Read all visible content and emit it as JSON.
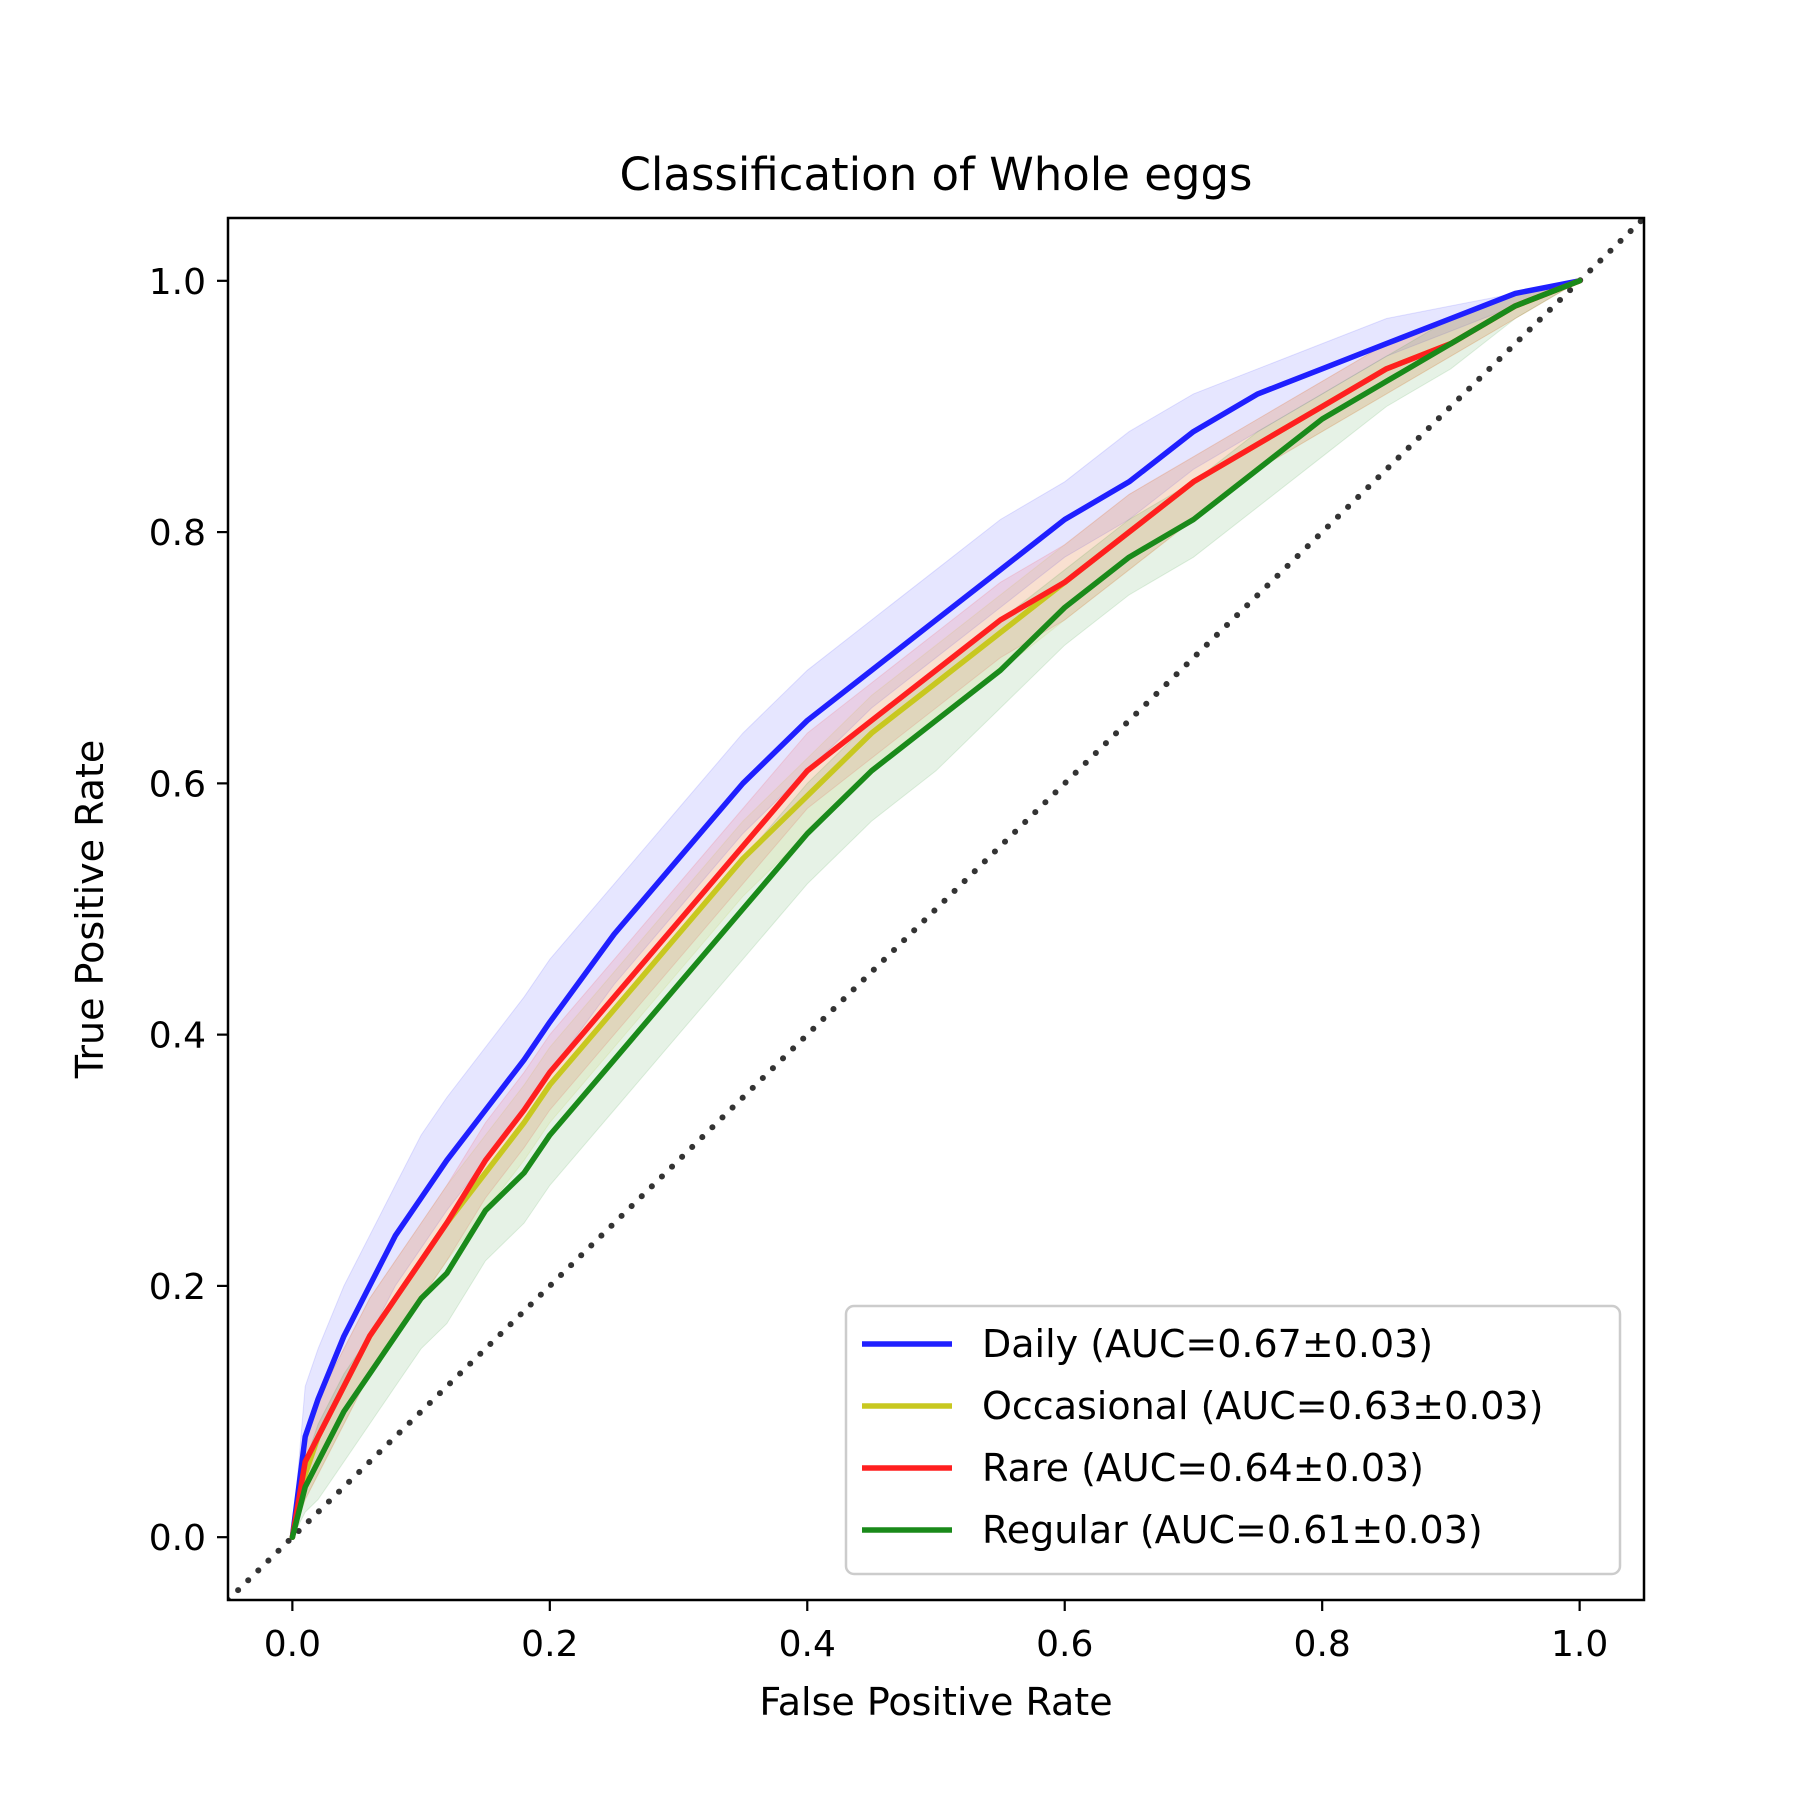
{
  "chart_data": {
    "type": "line",
    "title": "Classification of Whole eggs",
    "xlabel": "False Positive Rate",
    "ylabel": "True Positive Rate",
    "xlim": [
      -0.05,
      1.05
    ],
    "ylim": [
      -0.05,
      1.05
    ],
    "xticks": [
      0.0,
      0.2,
      0.4,
      0.6,
      0.8,
      1.0
    ],
    "yticks": [
      0.0,
      0.2,
      0.4,
      0.6,
      0.8,
      1.0
    ],
    "xtick_labels": [
      "0.0",
      "0.2",
      "0.4",
      "0.6",
      "0.8",
      "1.0"
    ],
    "ytick_labels": [
      "0.0",
      "0.2",
      "0.4",
      "0.6",
      "0.8",
      "1.0"
    ],
    "grid": false,
    "legend_position": "lower-right",
    "x": [
      0.0,
      0.01,
      0.02,
      0.04,
      0.06,
      0.08,
      0.1,
      0.12,
      0.15,
      0.18,
      0.2,
      0.25,
      0.3,
      0.35,
      0.4,
      0.45,
      0.5,
      0.55,
      0.6,
      0.65,
      0.7,
      0.75,
      0.8,
      0.85,
      0.9,
      0.95,
      1.0
    ],
    "series": [
      {
        "name": "Daily (AUC=0.67±0.03)",
        "color": "#1f1fff",
        "values": [
          0.0,
          0.08,
          0.11,
          0.16,
          0.2,
          0.24,
          0.27,
          0.3,
          0.34,
          0.38,
          0.41,
          0.48,
          0.54,
          0.6,
          0.65,
          0.69,
          0.73,
          0.77,
          0.81,
          0.84,
          0.88,
          0.91,
          0.93,
          0.95,
          0.97,
          0.99,
          1.0
        ],
        "lower": [
          0.0,
          0.05,
          0.08,
          0.12,
          0.16,
          0.2,
          0.23,
          0.26,
          0.3,
          0.34,
          0.37,
          0.44,
          0.5,
          0.56,
          0.61,
          0.66,
          0.7,
          0.74,
          0.78,
          0.81,
          0.85,
          0.88,
          0.91,
          0.94,
          0.96,
          0.98,
          1.0
        ],
        "upper": [
          0.0,
          0.12,
          0.15,
          0.2,
          0.24,
          0.28,
          0.32,
          0.35,
          0.39,
          0.43,
          0.46,
          0.52,
          0.58,
          0.64,
          0.69,
          0.73,
          0.77,
          0.81,
          0.84,
          0.88,
          0.91,
          0.93,
          0.95,
          0.97,
          0.98,
          0.99,
          1.0
        ]
      },
      {
        "name": "Occasional (AUC=0.63±0.03)",
        "color": "#c8c820",
        "values": [
          0.0,
          0.05,
          0.08,
          0.12,
          0.16,
          0.19,
          0.22,
          0.25,
          0.29,
          0.33,
          0.36,
          0.42,
          0.48,
          0.54,
          0.59,
          0.64,
          0.68,
          0.72,
          0.76,
          0.8,
          0.84,
          0.87,
          0.9,
          0.93,
          0.95,
          0.98,
          1.0
        ],
        "lower": [
          0.0,
          0.03,
          0.05,
          0.09,
          0.13,
          0.16,
          0.19,
          0.22,
          0.26,
          0.3,
          0.33,
          0.39,
          0.45,
          0.51,
          0.56,
          0.61,
          0.65,
          0.69,
          0.73,
          0.77,
          0.81,
          0.85,
          0.88,
          0.91,
          0.94,
          0.97,
          1.0
        ],
        "upper": [
          0.0,
          0.08,
          0.11,
          0.15,
          0.19,
          0.22,
          0.25,
          0.28,
          0.32,
          0.36,
          0.39,
          0.45,
          0.51,
          0.57,
          0.62,
          0.67,
          0.71,
          0.75,
          0.79,
          0.83,
          0.86,
          0.89,
          0.92,
          0.95,
          0.97,
          0.99,
          1.0
        ]
      },
      {
        "name": "Rare (AUC=0.64±0.03)",
        "color": "#ff1f1f",
        "values": [
          0.0,
          0.06,
          0.08,
          0.12,
          0.16,
          0.19,
          0.22,
          0.25,
          0.3,
          0.34,
          0.37,
          0.43,
          0.49,
          0.55,
          0.61,
          0.65,
          0.69,
          0.73,
          0.76,
          0.8,
          0.84,
          0.87,
          0.9,
          0.93,
          0.95,
          0.98,
          1.0
        ],
        "lower": [
          0.0,
          0.03,
          0.05,
          0.09,
          0.13,
          0.16,
          0.19,
          0.22,
          0.27,
          0.31,
          0.34,
          0.4,
          0.46,
          0.52,
          0.58,
          0.62,
          0.66,
          0.7,
          0.73,
          0.77,
          0.81,
          0.85,
          0.88,
          0.91,
          0.94,
          0.97,
          1.0
        ],
        "upper": [
          0.0,
          0.08,
          0.11,
          0.15,
          0.19,
          0.22,
          0.25,
          0.28,
          0.33,
          0.37,
          0.4,
          0.46,
          0.52,
          0.58,
          0.64,
          0.68,
          0.72,
          0.76,
          0.79,
          0.83,
          0.86,
          0.89,
          0.92,
          0.95,
          0.97,
          0.99,
          1.0
        ]
      },
      {
        "name": "Regular (AUC=0.61±0.03)",
        "color": "#1a8a1a",
        "values": [
          0.0,
          0.04,
          0.06,
          0.1,
          0.13,
          0.16,
          0.19,
          0.21,
          0.26,
          0.29,
          0.32,
          0.38,
          0.44,
          0.5,
          0.56,
          0.61,
          0.65,
          0.69,
          0.74,
          0.78,
          0.81,
          0.85,
          0.89,
          0.92,
          0.95,
          0.98,
          1.0
        ],
        "lower": [
          0.0,
          0.02,
          0.03,
          0.06,
          0.09,
          0.12,
          0.15,
          0.17,
          0.22,
          0.25,
          0.28,
          0.34,
          0.4,
          0.46,
          0.52,
          0.57,
          0.61,
          0.66,
          0.71,
          0.75,
          0.78,
          0.82,
          0.86,
          0.9,
          0.93,
          0.97,
          1.0
        ],
        "upper": [
          0.0,
          0.06,
          0.09,
          0.13,
          0.16,
          0.19,
          0.22,
          0.25,
          0.29,
          0.33,
          0.36,
          0.42,
          0.48,
          0.54,
          0.6,
          0.65,
          0.69,
          0.73,
          0.77,
          0.81,
          0.84,
          0.88,
          0.91,
          0.94,
          0.97,
          0.99,
          1.0
        ]
      }
    ],
    "reference_line": {
      "from": [
        -0.05,
        -0.05
      ],
      "to": [
        1.05,
        1.05
      ],
      "style": "dotted",
      "color": "#333333"
    }
  }
}
